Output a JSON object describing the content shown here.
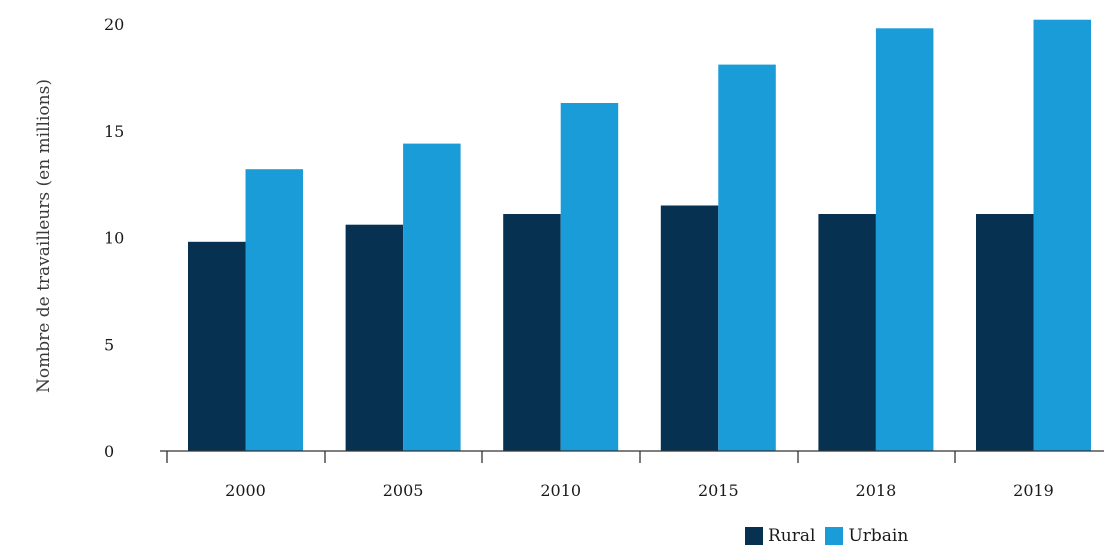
{
  "chart_data": {
    "type": "bar",
    "title": "",
    "xlabel": "",
    "ylabel": "Nombre de travailleurs (en millions)",
    "categories": [
      "2000",
      "2005",
      "2010",
      "2015",
      "2018",
      "2019"
    ],
    "series": [
      {
        "name": "Rural",
        "color": "#063150",
        "values": [
          9.8,
          10.6,
          11.1,
          11.5,
          11.1,
          11.1
        ]
      },
      {
        "name": "Urbain",
        "color": "#1a9cd9",
        "values": [
          13.2,
          14.4,
          16.3,
          18.1,
          19.8,
          20.2
        ]
      }
    ],
    "ylim": [
      0,
      20
    ],
    "yticks": [
      "0",
      "5",
      "10",
      "15",
      "20"
    ],
    "grid": false,
    "legend_position": "bottom-right"
  }
}
